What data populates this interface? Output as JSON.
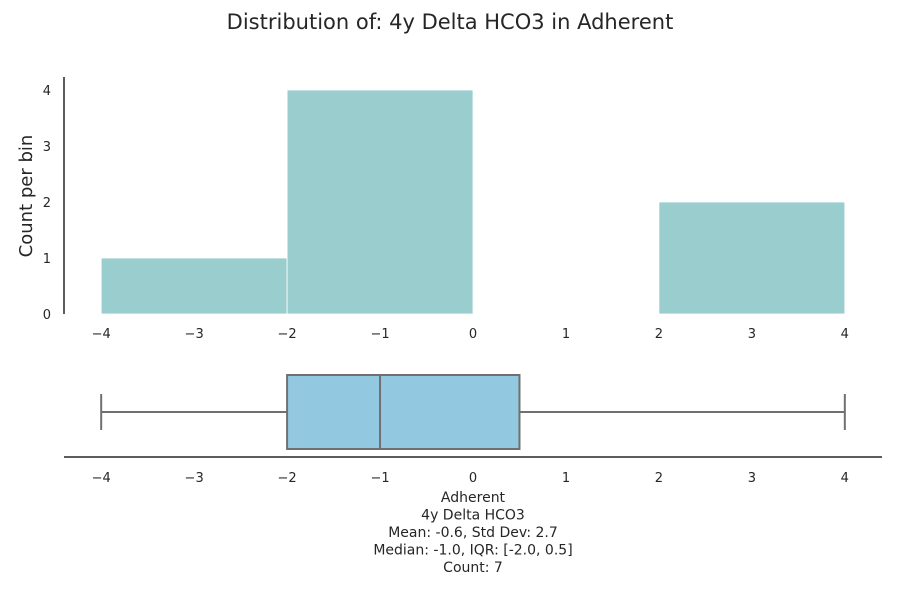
{
  "chart_data": [
    {
      "type": "bar",
      "title": "Distribution of: 4y Delta HCO3 in Adherent",
      "ylabel": "Count per bin",
      "xlim": [
        -4.4,
        4.4
      ],
      "ylim": [
        0,
        4.2
      ],
      "x_ticks": [
        "−4",
        "−3",
        "−2",
        "−1",
        "0",
        "1",
        "2",
        "3",
        "4"
      ],
      "y_ticks": [
        "0",
        "1",
        "2",
        "3",
        "4"
      ],
      "bins": [
        {
          "start": -4,
          "end": -2,
          "count": 1
        },
        {
          "start": -2,
          "end": 0,
          "count": 4
        },
        {
          "start": 0,
          "end": 2,
          "count": 0
        },
        {
          "start": 2,
          "end": 4,
          "count": 2
        }
      ],
      "bar_color": "#9acdce",
      "grid": false
    },
    {
      "type": "box",
      "xlim": [
        -4.4,
        4.4
      ],
      "x_ticks": [
        "−4",
        "−3",
        "−2",
        "−1",
        "0",
        "1",
        "2",
        "3",
        "4"
      ],
      "whisker_low": -4.0,
      "q1": -2.0,
      "median": -1.0,
      "q3": 0.5,
      "whisker_high": 4.0,
      "box_color": "#92c8e0",
      "line_color": "#707070",
      "caption": [
        "Adherent",
        "4y Delta HCO3",
        "Mean: -0.6, Std Dev: 2.7",
        "Median: -1.0, IQR: [-2.0, 0.5]",
        "Count: 7"
      ]
    }
  ]
}
